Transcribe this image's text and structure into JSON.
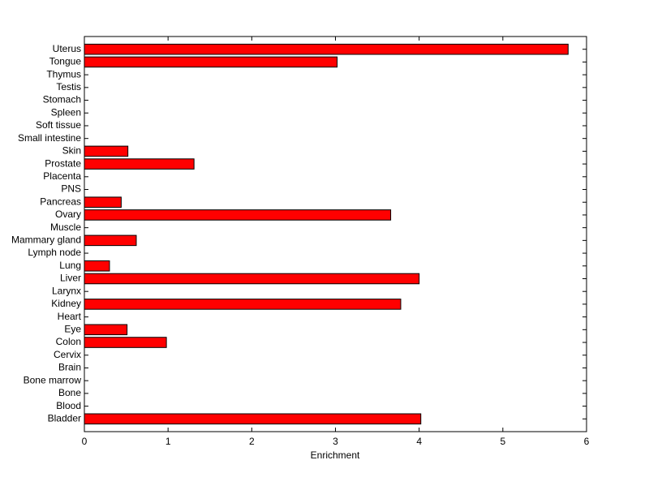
{
  "chart_data": {
    "type": "barh",
    "xlabel": "Enrichment",
    "categories": [
      "Bladder",
      "Blood",
      "Bone",
      "Bone marrow",
      "Brain",
      "Cervix",
      "Colon",
      "Eye",
      "Heart",
      "Kidney",
      "Larynx",
      "Liver",
      "Lung",
      "Lymph node",
      "Mammary gland",
      "Muscle",
      "Ovary",
      "Pancreas",
      "PNS",
      "Placenta",
      "Prostate",
      "Skin",
      "Small intestine",
      "Soft tissue",
      "Spleen",
      "Stomach",
      "Testis",
      "Thymus",
      "Tongue",
      "Uterus"
    ],
    "values": [
      4.02,
      0,
      0,
      0,
      0,
      0,
      0.98,
      0.51,
      0,
      3.78,
      0,
      4.0,
      0.3,
      0,
      0.62,
      0,
      3.66,
      0.44,
      0,
      0,
      1.31,
      0.52,
      0,
      0,
      0,
      0,
      0,
      0,
      3.02,
      5.78
    ],
    "color": "#ff0000",
    "xlim": [
      0,
      6
    ],
    "xticks": [
      0,
      1,
      2,
      3,
      4,
      5,
      6
    ]
  }
}
